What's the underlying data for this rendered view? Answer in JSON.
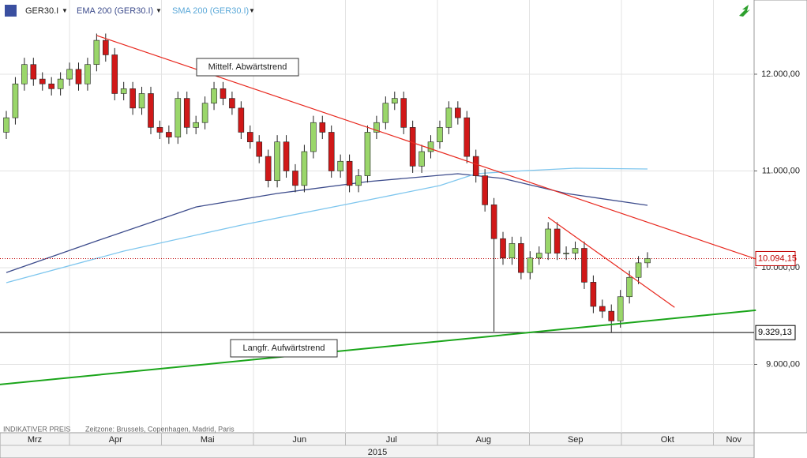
{
  "chart_data": {
    "type": "candlestick",
    "name": "GER30.I",
    "open": [
      11400,
      11550,
      11900,
      12100,
      11950,
      11900,
      11850,
      11950,
      12050,
      11900,
      12100,
      12350,
      12200,
      11800,
      11850,
      11650,
      11800,
      11450,
      11400,
      11350,
      11750,
      11450,
      11500,
      11700,
      11850,
      11750,
      11650,
      11400,
      11300,
      11150,
      10900,
      11300,
      11000,
      10850,
      11200,
      11500,
      11400,
      11000,
      11100,
      10850,
      10950,
      11400,
      11500,
      11700,
      11750,
      11450,
      11050,
      11200,
      11300,
      11450,
      11650,
      11550,
      11150,
      10950,
      10650,
      10300,
      10100,
      10250,
      9950,
      10100,
      10150,
      10400,
      10150,
      10150,
      10200,
      9850,
      9600,
      9550,
      9450,
      9700,
      9900,
      10050
    ],
    "high": [
      11620,
      11970,
      12170,
      12170,
      12020,
      11970,
      12020,
      12120,
      12120,
      12170,
      12420,
      12420,
      12270,
      11920,
      11920,
      11870,
      11870,
      11520,
      11470,
      11820,
      11820,
      11570,
      11770,
      11920,
      11920,
      11820,
      11720,
      11470,
      11370,
      11220,
      11370,
      11370,
      11070,
      11270,
      11570,
      11570,
      11470,
      11170,
      11170,
      11020,
      11470,
      11570,
      11770,
      11820,
      11820,
      11520,
      11270,
      11370,
      11520,
      11720,
      11720,
      11620,
      11220,
      11020,
      10720,
      10370,
      10320,
      10320,
      10170,
      10220,
      10470,
      10470,
      10220,
      10270,
      10270,
      9920,
      9670,
      9620,
      9770,
      9970,
      10120,
      10160
    ],
    "low": [
      11330,
      11480,
      11830,
      11880,
      11830,
      11780,
      11780,
      11880,
      11830,
      11830,
      12030,
      12130,
      11730,
      11730,
      11580,
      11580,
      11380,
      11330,
      11280,
      11280,
      11380,
      11380,
      11430,
      11630,
      11680,
      11580,
      11330,
      11230,
      11080,
      10830,
      10830,
      10930,
      10780,
      10780,
      11130,
      11330,
      10930,
      10930,
      10780,
      10780,
      10880,
      11330,
      11430,
      11630,
      11380,
      10980,
      10980,
      11130,
      11230,
      11380,
      11480,
      11080,
      10880,
      10580,
      9340,
      10030,
      10030,
      9880,
      9880,
      10030,
      10080,
      10080,
      10080,
      10080,
      9780,
      9530,
      9480,
      9330,
      9380,
      9630,
      9830,
      10000
    ],
    "close": [
      11550,
      11900,
      12100,
      11950,
      11900,
      11850,
      11950,
      12050,
      11900,
      12100,
      12350,
      12200,
      11800,
      11850,
      11650,
      11800,
      11450,
      11400,
      11350,
      11750,
      11450,
      11500,
      11700,
      11850,
      11750,
      11650,
      11400,
      11300,
      11150,
      10900,
      11300,
      11000,
      10850,
      11200,
      11500,
      11400,
      11000,
      11100,
      10850,
      10950,
      11400,
      11500,
      11700,
      11750,
      11450,
      11050,
      11200,
      11300,
      11450,
      11650,
      11550,
      11150,
      10950,
      10650,
      10300,
      10100,
      10250,
      9950,
      10100,
      10150,
      10400,
      10150,
      10150,
      10200,
      9850,
      9600,
      9550,
      9450,
      9700,
      9900,
      10050,
      10094
    ],
    "up_color": "#9ad66a",
    "down_color": "#d01818",
    "overlays": [
      {
        "name": "EMA 200 (GER30.I)",
        "color": "#3d4c8c",
        "x": [
          0,
          10,
          21,
          30,
          40,
          50,
          55,
          62,
          71
        ],
        "values": [
          9950,
          10277,
          10628,
          10767,
          10890,
          10971,
          10922,
          10767,
          10645
        ]
      },
      {
        "name": "SMA 200 (GER30.I)",
        "color": "#7ec6ee",
        "x": [
          0,
          13,
          26,
          38,
          48,
          52,
          56,
          63,
          71
        ],
        "values": [
          9845,
          10171,
          10440,
          10661,
          10849,
          10971,
          10996,
          11028,
          11020
        ]
      }
    ],
    "trendlines": [
      {
        "color": "#e8281e",
        "x": [
          10,
          83
        ],
        "values": [
          12400,
          10090
        ]
      },
      {
        "color": "#e8281e",
        "x": [
          60,
          74
        ],
        "values": [
          10520,
          9590
        ]
      },
      {
        "color": "#1aa51a",
        "x": [
          -1,
          83
        ],
        "values": [
          8790,
          9560
        ]
      }
    ],
    "annotations": [
      "Mittelf. Abwärtstrend",
      "Langfr. Aufwärtstrend"
    ],
    "price_lines": [
      {
        "value": 10094.15,
        "label": "10.094,15",
        "color": "#c00000"
      },
      {
        "value": 9329.13,
        "label": "9.329,13",
        "color": "#000000"
      }
    ],
    "ylim": [
      8294,
      12767
    ],
    "yticks": [
      {
        "value": 9000,
        "label": "9.000,00"
      },
      {
        "value": 10000,
        "label": "10.000,00"
      },
      {
        "value": 11000,
        "label": "11.000,00"
      },
      {
        "value": 12000,
        "label": "12.000,00"
      }
    ],
    "grid": true,
    "months": [
      "Mrz",
      "Apr",
      "Mai",
      "Jun",
      "Jul",
      "Aug",
      "Sep",
      "Okt",
      "Nov"
    ],
    "year": "2015",
    "footer": [
      "INDIKATIVER PREIS",
      "Zeitzone: Brussels, Copenhagen, Madrid, Paris"
    ]
  }
}
